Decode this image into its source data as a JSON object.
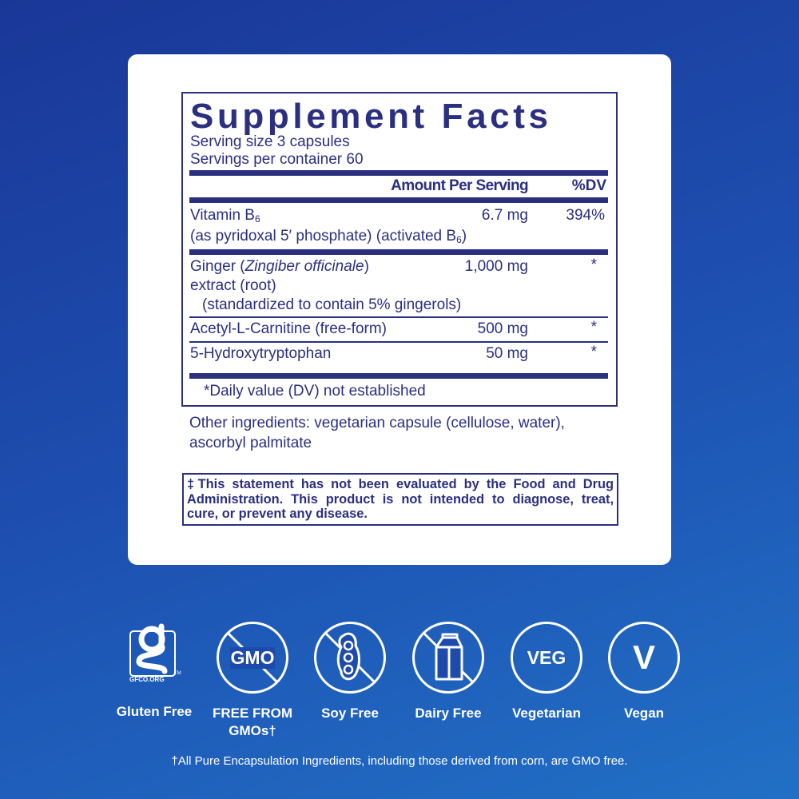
{
  "facts": {
    "title": "Supplement Facts",
    "serving_size": "Serving size  3 capsules",
    "servings_per_container": "Servings per container  60",
    "header_amount": "Amount Per Serving",
    "header_dv": "%DV",
    "rows": [
      {
        "name": "Vitamin B",
        "sub": "6",
        "amount": "6.7 mg",
        "dv": "394%",
        "note": "(as pyridoxal 5′ phosphate) (activated B",
        "note_sub": "6",
        "note_end": ")"
      },
      {
        "name": "Ginger (",
        "italic": "Zingiber officinale",
        "name_end": ")",
        "line2": "extract (root)",
        "line3": "(standardized to contain 5% gingerols)",
        "amount": "1,000 mg",
        "dv": "*"
      },
      {
        "name": "Acetyl-L-Carnitine (free-form)",
        "amount": "500 mg",
        "dv": "*"
      },
      {
        "name": "5-Hydroxytryptophan",
        "amount": "50 mg",
        "dv": "*"
      }
    ],
    "footnote": "*Daily value (DV) not established"
  },
  "other_ingredients": "Other ingredients:  vegetarian capsule (cellulose, water), ascorbyl palmitate",
  "disclaimer": "‡This statement has not been evaluated by the Food and Drug Administration. This product is not intended to diagnose, treat, cure, or prevent any disease.",
  "badges": [
    {
      "icon": "gluten-free-logo",
      "logo_text": "GFCO.ORG",
      "tm": "TM",
      "label": "Gluten Free"
    },
    {
      "icon": "no-gmo-icon",
      "text": "GMO",
      "label": "FREE FROM GMOs†"
    },
    {
      "icon": "no-soy-icon",
      "label": "Soy Free"
    },
    {
      "icon": "no-dairy-icon",
      "label": "Dairy Free"
    },
    {
      "icon": "veg-icon",
      "text": "VEG",
      "label": "Vegetarian"
    },
    {
      "icon": "vegan-icon",
      "text": "V",
      "label": "Vegan"
    }
  ],
  "footer_note": "†All Pure Encapsulation Ingredients, including those derived from corn, are GMO free.",
  "colors": {
    "navy": "#2b2f80",
    "background": "#1d4fb0"
  }
}
